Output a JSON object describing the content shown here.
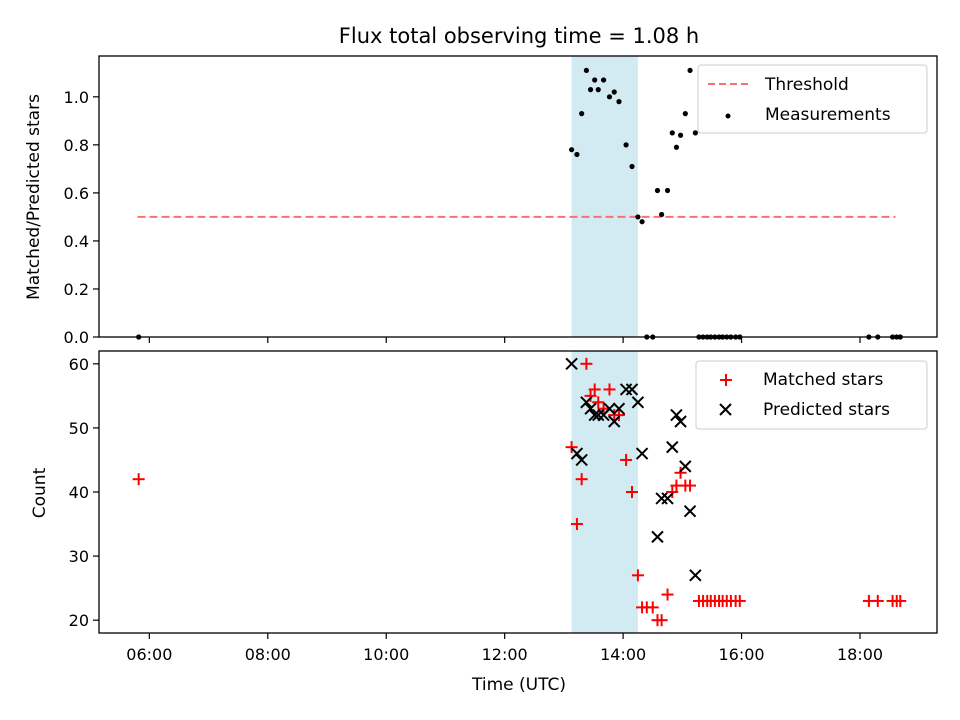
{
  "figure": {
    "title": "Flux total observing time = 1.08 h"
  },
  "chart_data": [
    {
      "type": "scatter",
      "panel": "top",
      "title": "Flux total observing time = 1.08 h",
      "ylabel": "Matched/Predicted stars",
      "xlabel": "",
      "xlim": [
        5.15,
        19.3
      ],
      "ylim": [
        0,
        1.17
      ],
      "yticks": [
        0.0,
        0.2,
        0.4,
        0.6,
        0.8,
        1.0
      ],
      "ytick_labels": [
        "0.0",
        "0.2",
        "0.4",
        "0.6",
        "0.8",
        "1.0"
      ],
      "x_unit": "hours UTC",
      "shaded_span": {
        "x": [
          13.13,
          14.25
        ],
        "color": "#add8e6"
      },
      "legend_position": "top-right",
      "legend": [
        {
          "label": "Threshold",
          "style": "dashed-line",
          "color": "#ff6e6e"
        },
        {
          "label": "Measurements",
          "style": "dot",
          "color": "#000000"
        }
      ],
      "threshold": {
        "name": "Threshold",
        "y": 0.5,
        "x": [
          5.8,
          18.6
        ],
        "color": "#ff6e6e"
      },
      "measurements": {
        "name": "Measurements",
        "color": "#000000",
        "points": [
          [
            5.82,
            0.0
          ],
          [
            13.13,
            0.78
          ],
          [
            13.22,
            0.76
          ],
          [
            13.3,
            0.93
          ],
          [
            13.38,
            1.11
          ],
          [
            13.45,
            1.03
          ],
          [
            13.52,
            1.07
          ],
          [
            13.58,
            1.03
          ],
          [
            13.67,
            1.07
          ],
          [
            13.77,
            1.0
          ],
          [
            13.85,
            1.02
          ],
          [
            13.93,
            0.98
          ],
          [
            14.05,
            0.8
          ],
          [
            14.15,
            0.71
          ],
          [
            14.25,
            0.5
          ],
          [
            14.32,
            0.48
          ],
          [
            14.4,
            0.0
          ],
          [
            14.5,
            0.0
          ],
          [
            14.58,
            0.61
          ],
          [
            14.65,
            0.51
          ],
          [
            14.75,
            0.61
          ],
          [
            14.83,
            0.85
          ],
          [
            14.9,
            0.79
          ],
          [
            14.97,
            0.84
          ],
          [
            15.05,
            0.93
          ],
          [
            15.13,
            1.11
          ],
          [
            15.22,
            0.85
          ],
          [
            15.28,
            0.0
          ],
          [
            15.35,
            0.0
          ],
          [
            15.42,
            0.0
          ],
          [
            15.48,
            0.0
          ],
          [
            15.55,
            0.0
          ],
          [
            15.62,
            0.0
          ],
          [
            15.68,
            0.0
          ],
          [
            15.75,
            0.0
          ],
          [
            15.82,
            0.0
          ],
          [
            15.9,
            0.0
          ],
          [
            15.97,
            0.0
          ],
          [
            18.15,
            0.0
          ],
          [
            18.3,
            0.0
          ],
          [
            18.55,
            0.0
          ],
          [
            18.62,
            0.0
          ],
          [
            18.68,
            0.0
          ]
        ]
      }
    },
    {
      "type": "scatter",
      "panel": "bottom",
      "title": "",
      "ylabel": "Count",
      "xlabel": "Time (UTC)",
      "xlim": [
        5.15,
        19.3
      ],
      "ylim": [
        18,
        62
      ],
      "yticks": [
        20,
        30,
        40,
        50,
        60
      ],
      "ytick_labels": [
        "20",
        "30",
        "40",
        "50",
        "60"
      ],
      "xticks": [
        6,
        8,
        10,
        12,
        14,
        16,
        18
      ],
      "xtick_labels": [
        "06:00",
        "08:00",
        "10:00",
        "12:00",
        "14:00",
        "16:00",
        "18:00"
      ],
      "shaded_span": {
        "x": [
          13.13,
          14.25
        ],
        "color": "#add8e6"
      },
      "legend_position": "top-right",
      "legend": [
        {
          "label": "Matched stars",
          "style": "plus",
          "color": "#ff0000"
        },
        {
          "label": "Predicted stars",
          "style": "x",
          "color": "#000000"
        }
      ],
      "series": [
        {
          "name": "Matched stars",
          "marker": "plus",
          "color": "#ff0000",
          "points": [
            [
              5.82,
              42
            ],
            [
              13.13,
              47
            ],
            [
              13.22,
              35
            ],
            [
              13.3,
              42
            ],
            [
              13.38,
              60
            ],
            [
              13.45,
              55
            ],
            [
              13.52,
              56
            ],
            [
              13.58,
              54
            ],
            [
              13.67,
              53
            ],
            [
              13.77,
              56
            ],
            [
              13.85,
              52
            ],
            [
              13.93,
              52
            ],
            [
              14.05,
              45
            ],
            [
              14.15,
              40
            ],
            [
              14.25,
              27
            ],
            [
              14.32,
              22
            ],
            [
              14.4,
              22
            ],
            [
              14.5,
              22
            ],
            [
              14.58,
              20
            ],
            [
              14.65,
              20
            ],
            [
              14.75,
              24
            ],
            [
              14.83,
              40
            ],
            [
              14.9,
              41
            ],
            [
              14.97,
              43
            ],
            [
              15.05,
              41
            ],
            [
              15.13,
              41
            ],
            [
              15.28,
              23
            ],
            [
              15.35,
              23
            ],
            [
              15.42,
              23
            ],
            [
              15.48,
              23
            ],
            [
              15.55,
              23
            ],
            [
              15.62,
              23
            ],
            [
              15.68,
              23
            ],
            [
              15.75,
              23
            ],
            [
              15.82,
              23
            ],
            [
              15.9,
              23
            ],
            [
              15.97,
              23
            ],
            [
              18.15,
              23
            ],
            [
              18.3,
              23
            ],
            [
              18.55,
              23
            ],
            [
              18.62,
              23
            ],
            [
              18.68,
              23
            ]
          ]
        },
        {
          "name": "Predicted stars",
          "marker": "x",
          "color": "#000000",
          "points": [
            [
              13.13,
              60
            ],
            [
              13.22,
              46
            ],
            [
              13.3,
              45
            ],
            [
              13.38,
              54
            ],
            [
              13.45,
              53
            ],
            [
              13.52,
              52
            ],
            [
              13.58,
              52
            ],
            [
              13.67,
              52
            ],
            [
              13.77,
              53
            ],
            [
              13.85,
              51
            ],
            [
              13.93,
              53
            ],
            [
              14.05,
              56
            ],
            [
              14.15,
              56
            ],
            [
              14.25,
              54
            ],
            [
              14.32,
              46
            ],
            [
              14.58,
              33
            ],
            [
              14.65,
              39
            ],
            [
              14.75,
              39
            ],
            [
              14.83,
              47
            ],
            [
              14.9,
              52
            ],
            [
              14.97,
              51
            ],
            [
              15.05,
              44
            ],
            [
              15.13,
              37
            ],
            [
              15.22,
              27
            ]
          ]
        }
      ]
    }
  ]
}
